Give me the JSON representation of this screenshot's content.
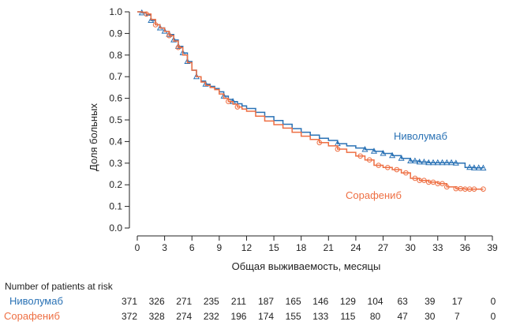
{
  "colors": {
    "nivolumab": "#2a72b5",
    "sorafenib": "#ee6f43",
    "axis": "#222222",
    "text": "#222222"
  },
  "chart_data": {
    "type": "line",
    "subtype": "kaplan-meier",
    "xlabel": "Общая выживаемость, месяцы",
    "ylabel": "Доля больных",
    "xlim": [
      0,
      39
    ],
    "ylim": [
      0,
      1.0
    ],
    "xticks": [
      0,
      3,
      6,
      9,
      12,
      15,
      18,
      21,
      24,
      27,
      30,
      33,
      36,
      39
    ],
    "yticks": [
      "0.0",
      "0.1",
      "0.2",
      "0.3",
      "0.4",
      "0.5",
      "0.6",
      "0.7",
      "0.8",
      "0.9",
      "1.0"
    ],
    "grid": false,
    "legend": "inline labels near curves",
    "series": [
      {
        "name": "Ниволумаб",
        "color": "#2a72b5",
        "marker": "triangle",
        "points": [
          [
            0,
            1.0
          ],
          [
            0.5,
            0.995
          ],
          [
            1,
            0.985
          ],
          [
            1.5,
            0.96
          ],
          [
            2,
            0.94
          ],
          [
            2.5,
            0.925
          ],
          [
            3,
            0.91
          ],
          [
            3.5,
            0.895
          ],
          [
            4,
            0.87
          ],
          [
            4.5,
            0.84
          ],
          [
            5,
            0.81
          ],
          [
            5.5,
            0.77
          ],
          [
            6,
            0.73
          ],
          [
            6.5,
            0.7
          ],
          [
            7,
            0.68
          ],
          [
            7.5,
            0.665
          ],
          [
            8,
            0.655
          ],
          [
            8.5,
            0.645
          ],
          [
            9,
            0.63
          ],
          [
            9.5,
            0.61
          ],
          [
            10,
            0.595
          ],
          [
            10.5,
            0.585
          ],
          [
            11,
            0.575
          ],
          [
            11.5,
            0.565
          ],
          [
            12,
            0.553
          ],
          [
            13,
            0.535
          ],
          [
            14,
            0.515
          ],
          [
            15,
            0.497
          ],
          [
            16,
            0.48
          ],
          [
            17,
            0.46
          ],
          [
            18,
            0.443
          ],
          [
            19,
            0.43
          ],
          [
            20,
            0.415
          ],
          [
            21,
            0.405
          ],
          [
            22,
            0.39
          ],
          [
            23,
            0.38
          ],
          [
            24,
            0.37
          ],
          [
            25,
            0.363
          ],
          [
            26,
            0.355
          ],
          [
            27,
            0.345
          ],
          [
            28,
            0.335
          ],
          [
            29,
            0.322
          ],
          [
            30,
            0.31
          ],
          [
            31,
            0.305
          ],
          [
            32,
            0.302
          ],
          [
            33,
            0.302
          ],
          [
            34,
            0.302
          ],
          [
            35,
            0.3
          ],
          [
            36,
            0.28
          ],
          [
            37,
            0.278
          ],
          [
            38,
            0.277
          ]
        ],
        "censor_x": [
          0.5,
          1.5,
          2.5,
          3,
          3.5,
          4,
          4.5,
          5,
          5.5,
          6.5,
          7.5,
          9.5,
          10.5,
          22,
          25,
          26,
          27,
          28,
          29,
          30,
          30.5,
          31,
          31.5,
          32,
          32.5,
          33,
          33.5,
          34,
          34.5,
          35,
          36.5,
          37,
          37.5,
          38
        ]
      },
      {
        "name": "Сорафениб",
        "color": "#ee6f43",
        "marker": "circle",
        "points": [
          [
            0,
            1.0
          ],
          [
            0.5,
            0.998
          ],
          [
            1,
            0.99
          ],
          [
            1.5,
            0.965
          ],
          [
            2,
            0.94
          ],
          [
            2.5,
            0.925
          ],
          [
            3,
            0.91
          ],
          [
            3.5,
            0.89
          ],
          [
            4,
            0.865
          ],
          [
            4.5,
            0.835
          ],
          [
            5,
            0.8
          ],
          [
            5.5,
            0.765
          ],
          [
            6,
            0.73
          ],
          [
            6.5,
            0.7
          ],
          [
            7,
            0.675
          ],
          [
            7.5,
            0.66
          ],
          [
            8,
            0.65
          ],
          [
            8.5,
            0.64
          ],
          [
            9,
            0.62
          ],
          [
            9.5,
            0.6
          ],
          [
            10,
            0.585
          ],
          [
            10.5,
            0.573
          ],
          [
            11,
            0.56
          ],
          [
            11.5,
            0.55
          ],
          [
            12,
            0.54
          ],
          [
            13,
            0.517
          ],
          [
            14,
            0.495
          ],
          [
            15,
            0.478
          ],
          [
            16,
            0.462
          ],
          [
            17,
            0.443
          ],
          [
            18,
            0.425
          ],
          [
            19,
            0.41
          ],
          [
            20,
            0.395
          ],
          [
            21,
            0.38
          ],
          [
            22,
            0.365
          ],
          [
            23,
            0.35
          ],
          [
            24,
            0.333
          ],
          [
            25,
            0.315
          ],
          [
            26,
            0.29
          ],
          [
            27,
            0.28
          ],
          [
            28,
            0.27
          ],
          [
            29,
            0.255
          ],
          [
            30,
            0.23
          ],
          [
            31,
            0.22
          ],
          [
            32,
            0.212
          ],
          [
            33,
            0.205
          ],
          [
            34,
            0.19
          ],
          [
            35,
            0.182
          ],
          [
            36,
            0.18
          ],
          [
            37,
            0.18
          ],
          [
            38,
            0.18
          ]
        ],
        "censor_x": [
          1,
          2,
          3.5,
          4.5,
          10,
          11,
          20,
          22,
          24.5,
          25.5,
          26.5,
          27.5,
          28.5,
          29.5,
          30.5,
          31,
          31.5,
          32,
          32.5,
          33,
          33.5,
          34,
          35,
          35.5,
          36,
          36.5,
          37,
          38
        ]
      }
    ],
    "labels": [
      {
        "text": "Ниволумаб",
        "series": 0
      },
      {
        "text": "Сорафениб",
        "series": 1
      }
    ]
  },
  "risk_table": {
    "title": "Number of patients at risk",
    "rows": [
      {
        "label": "Ниволумаб",
        "color": "#2a72b5",
        "values": [
          "371",
          "326",
          "271",
          "235",
          "211",
          "187",
          "165",
          "146",
          "129",
          "104",
          "63",
          "39",
          "17",
          "0"
        ]
      },
      {
        "label": "Сорафениб",
        "color": "#ee6f43",
        "values": [
          "372",
          "328",
          "274",
          "232",
          "196",
          "174",
          "155",
          "133",
          "115",
          "80",
          "47",
          "30",
          "7",
          "0"
        ]
      }
    ]
  }
}
